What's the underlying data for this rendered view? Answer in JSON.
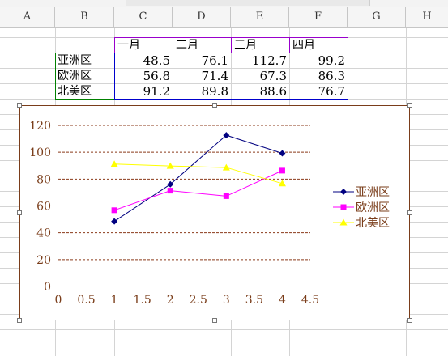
{
  "columns": [
    "A",
    "B",
    "C",
    "D",
    "E",
    "F",
    "G",
    "H"
  ],
  "table": {
    "headers": [
      "一月",
      "二月",
      "三月",
      "四月"
    ],
    "rows": [
      {
        "region": "亚洲区",
        "values": [
          "48.5",
          "76.1",
          "112.7",
          "99.2"
        ]
      },
      {
        "region": "欧洲区",
        "values": [
          "56.8",
          "71.4",
          "67.3",
          "86.3"
        ]
      },
      {
        "region": "北美区",
        "values": [
          "91.2",
          "89.8",
          "88.6",
          "76.7"
        ]
      }
    ]
  },
  "chart_data": {
    "type": "scatter",
    "xlim": [
      0,
      4.5
    ],
    "ylim": [
      0,
      120
    ],
    "xticks": [
      "0",
      "0.5",
      "1",
      "1.5",
      "2",
      "2.5",
      "3",
      "3.5",
      "4",
      "4.5"
    ],
    "yticks": [
      "0",
      "20",
      "40",
      "60",
      "80",
      "100",
      "120"
    ],
    "grid": true,
    "legend_position": "right",
    "series": [
      {
        "name": "亚洲区",
        "color": "#000080",
        "marker": "diamond",
        "x": [
          1,
          2,
          3,
          4
        ],
        "y": [
          48.5,
          76.1,
          112.7,
          99.2
        ]
      },
      {
        "name": "欧洲区",
        "color": "#ff00ff",
        "marker": "square",
        "x": [
          1,
          2,
          3,
          4
        ],
        "y": [
          56.8,
          71.4,
          67.3,
          86.3
        ]
      },
      {
        "name": "北美区",
        "color": "#ffff00",
        "marker": "triangle",
        "x": [
          1,
          2,
          3,
          4
        ],
        "y": [
          91.2,
          89.8,
          88.6,
          76.7
        ]
      }
    ]
  }
}
